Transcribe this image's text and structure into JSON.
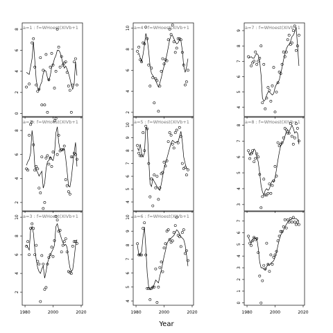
{
  "chart_data": {
    "type": "scatter",
    "layout": "3x3 small multiples",
    "overlay": "line",
    "xlabel": "Year",
    "ylabel": "",
    "x_ticks": [
      1980,
      2000,
      2020
    ],
    "x_tick_labels": [
      "1980",
      "2000",
      "2020"
    ],
    "xlim": [
      1978,
      2021
    ],
    "panels": [
      {
        "panel": 1,
        "title": "a=1 : f=WHoest(XIVb+1",
        "ylim": [
          -0.3,
          8.6
        ],
        "y_ticks": [
          0,
          2,
          4,
          6,
          8
        ],
        "x": [
          1981,
          1983,
          1985,
          1986,
          1987,
          1988,
          1989,
          1990,
          1991,
          1992,
          1993,
          1994,
          1995,
          1996,
          1997,
          1998,
          1999,
          2000,
          2001,
          2002,
          2003,
          2004,
          2005,
          2006,
          2007,
          2008,
          2009,
          2010,
          2011,
          2012,
          2013,
          2014,
          2015,
          2016,
          2017
        ],
        "y": [
          2.5,
          2.8,
          6.7,
          7.1,
          4.4,
          2.7,
          2.1,
          2.3,
          5.3,
          0.8,
          4.1,
          0.8,
          5.6,
          0.1,
          3.2,
          4.4,
          5.7,
          4.6,
          2.4,
          4.0,
          8.0,
          6.3,
          4.4,
          5.4,
          4.6,
          4.8,
          4.9,
          3.9,
          2.6,
          2.2,
          0.1,
          2.7,
          4.9,
          5.2,
          2.7
        ],
        "line": [
          3.9,
          3.7,
          5.2,
          6.8,
          5.0,
          3.2,
          2.4,
          2.2,
          2.7,
          3.0,
          3.8,
          4.1,
          4.0,
          3.4,
          3.1,
          3.6,
          4.4,
          4.7,
          5.2,
          5.5,
          6.0,
          6.0,
          5.8,
          5.3,
          4.7,
          4.3,
          4.5,
          4.2,
          3.8,
          3.3,
          2.7,
          2.3,
          2.8,
          4.9,
          3.6
        ]
      },
      {
        "panel": 2,
        "title": "a=4 : f=WHoest(XIVb+1",
        "ylim": [
          1.6,
          10.5
        ],
        "y_ticks": [
          2,
          4,
          6,
          8,
          10
        ],
        "x": [
          1981,
          1982,
          1983,
          1984,
          1985,
          1986,
          1987,
          1988,
          1989,
          1990,
          1991,
          1992,
          1993,
          1994,
          1995,
          1996,
          1997,
          1998,
          1999,
          2000,
          2001,
          2002,
          2003,
          2004,
          2005,
          2006,
          2007,
          2008,
          2009,
          2010,
          2011,
          2012,
          2013,
          2014,
          2015,
          2016,
          2017
        ],
        "y": [
          7.8,
          8.2,
          7.0,
          6.8,
          8.6,
          8.5,
          10.1,
          9.0,
          6.5,
          4.5,
          6.2,
          5.3,
          2.9,
          5.2,
          5.0,
          2.1,
          4.5,
          5.9,
          7.1,
          6.6,
          7.0,
          6.9,
          8.9,
          9.9,
          9.4,
          10.3,
          8.7,
          7.7,
          8.1,
          9.0,
          9.0,
          8.9,
          7.7,
          6.5,
          4.6,
          4.9,
          6.0
        ],
        "line": [
          7.5,
          7.6,
          7.2,
          6.8,
          7.5,
          8.4,
          9.5,
          9.0,
          7.8,
          6.4,
          5.7,
          5.5,
          5.3,
          5.0,
          4.7,
          4.4,
          4.8,
          5.3,
          5.9,
          6.4,
          6.9,
          7.5,
          8.2,
          8.9,
          9.3,
          9.3,
          9.0,
          8.7,
          8.5,
          8.6,
          8.9,
          8.8,
          7.9,
          6.4,
          5.8,
          6.3,
          7.1
        ]
      },
      {
        "panel": 3,
        "title": "a=7 : f=WHoest(XIVb+1",
        "ylim": [
          3.4,
          9.5
        ],
        "y_ticks": [
          4,
          5,
          6,
          7,
          8,
          9
        ],
        "x": [
          1981,
          1983,
          1984,
          1985,
          1986,
          1987,
          1988,
          1989,
          1990,
          1991,
          1992,
          1993,
          1994,
          1995,
          1996,
          1997,
          1998,
          1999,
          2000,
          2001,
          2002,
          2003,
          2004,
          2005,
          2006,
          2007,
          2008,
          2009,
          2010,
          2011,
          2012,
          2013,
          2014,
          2015,
          2016,
          2017
        ],
        "y": [
          7.3,
          6.7,
          6.9,
          7.0,
          7.6,
          6.8,
          7.0,
          7.2,
          8.0,
          4.3,
          6.8,
          3.9,
          4.6,
          5.3,
          5.1,
          4.4,
          5.4,
          6.6,
          3.7,
          5.0,
          5.6,
          6.3,
          6.2,
          6.8,
          7.6,
          7.3,
          7.6,
          8.4,
          8.7,
          8.1,
          8.2,
          9.0,
          9.3,
          7.7,
          8.0,
          8.7
        ],
        "line": [
          7.2,
          7.3,
          7.2,
          7.2,
          7.4,
          7.5,
          7.4,
          7.0,
          6.1,
          4.6,
          4.4,
          4.5,
          4.8,
          5.0,
          5.0,
          4.9,
          4.8,
          4.9,
          5.3,
          5.5,
          5.6,
          5.8,
          6.2,
          6.6,
          7.1,
          7.5,
          7.8,
          8.0,
          8.1,
          8.3,
          8.6,
          8.7,
          8.9,
          9.2,
          8.0,
          6.7
        ]
      },
      {
        "panel": 4,
        "title": "a=2 : f=WHoest(XIVb+1",
        "ylim": [
          1.3,
          9.1
        ],
        "y_ticks": [
          2,
          4,
          6,
          8
        ],
        "x": [
          1981,
          1982,
          1983,
          1984,
          1985,
          1986,
          1987,
          1988,
          1989,
          1990,
          1991,
          1992,
          1993,
          1994,
          1995,
          1996,
          1997,
          1998,
          1999,
          2000,
          2001,
          2002,
          2003,
          2004,
          2005,
          2006,
          2007,
          2008,
          2009,
          2010,
          2011,
          2012,
          2013,
          2014,
          2015,
          2016,
          2017
        ],
        "y": [
          4.8,
          4.7,
          7.6,
          8.5,
          8.7,
          6.8,
          4.7,
          5.0,
          4.8,
          3.2,
          2.8,
          5.8,
          1.5,
          2.0,
          5.7,
          5.9,
          5.2,
          5.7,
          5.0,
          6.2,
          8.8,
          9.0,
          6.0,
          7.6,
          6.3,
          6.4,
          6.4,
          6.7,
          3.9,
          3.4,
          2.9,
          2.7,
          5.8,
          5.8,
          6.1,
          6.0,
          5.6
        ],
        "line": [
          5.1,
          5.4,
          5.6,
          6.1,
          8.0,
          7.0,
          5.0,
          4.7,
          4.5,
          4.2,
          4.4,
          4.6,
          3.2,
          3.6,
          4.8,
          5.4,
          5.5,
          5.8,
          5.6,
          5.5,
          6.0,
          7.8,
          8.3,
          7.0,
          6.4,
          6.3,
          6.4,
          6.5,
          5.7,
          4.6,
          3.4,
          3.3,
          4.0,
          5.1,
          6.2,
          7.0,
          5.0
        ]
      },
      {
        "panel": 5,
        "title": "a=5 : f=WHoest(XIVb+1",
        "ylim": [
          3.3,
          10.6
        ],
        "y_ticks": [
          4,
          5,
          6,
          7,
          8,
          9,
          10
        ],
        "x": [
          1981,
          1982,
          1983,
          1984,
          1985,
          1986,
          1987,
          1988,
          1989,
          1990,
          1991,
          1992,
          1993,
          1994,
          1995,
          1996,
          1997,
          1998,
          1999,
          2000,
          2001,
          2002,
          2003,
          2004,
          2005,
          2006,
          2007,
          2008,
          2009,
          2010,
          2011,
          2012,
          2013,
          2014,
          2015,
          2016,
          2017
        ],
        "y": [
          8.4,
          7.8,
          7.6,
          7.6,
          9.4,
          8.0,
          9.9,
          9.7,
          7.0,
          4.4,
          5.8,
          3.7,
          6.1,
          5.1,
          6.0,
          4.2,
          5.1,
          6.2,
          6.3,
          7.1,
          6.8,
          7.2,
          8.7,
          9.4,
          9.2,
          8.5,
          8.2,
          9.4,
          9.6,
          8.6,
          9.8,
          9.1,
          7.0,
          6.6,
          6.7,
          6.1,
          6.5
        ],
        "line": [
          8.2,
          8.0,
          8.5,
          7.8,
          7.5,
          7.8,
          9.8,
          9.7,
          7.4,
          5.4,
          5.2,
          5.8,
          5.6,
          5.4,
          5.2,
          5.0,
          4.9,
          5.4,
          6.0,
          6.6,
          7.0,
          7.4,
          7.8,
          8.2,
          8.6,
          8.8,
          8.7,
          8.6,
          8.7,
          8.7,
          9.1,
          9.5,
          8.7,
          7.5,
          7.0,
          6.6,
          6.6
        ]
      },
      {
        "panel": 6,
        "title": "a=8 : f=WHoest(XIVb+1",
        "ylim": [
          2.6,
          8.5
        ],
        "y_ticks": [
          3,
          4,
          5,
          6,
          7,
          8
        ],
        "x": [
          1981,
          1982,
          1983,
          1984,
          1985,
          1986,
          1987,
          1988,
          1989,
          1990,
          1991,
          1992,
          1993,
          1994,
          1995,
          1996,
          1997,
          1998,
          1999,
          2000,
          2001,
          2002,
          2003,
          2004,
          2005,
          2006,
          2007,
          2008,
          2009,
          2010,
          2011,
          2012,
          2013,
          2014,
          2015,
          2016,
          2017
        ],
        "y": [
          6.4,
          5.9,
          6.2,
          6.4,
          5.7,
          5.9,
          6.2,
          6.0,
          4.9,
          2.8,
          3.5,
          4.6,
          3.6,
          3.6,
          3.7,
          4.3,
          3.7,
          4.2,
          4.5,
          5.4,
          4.8,
          6.9,
          6.7,
          6.8,
          6.9,
          7.2,
          7.8,
          7.7,
          7.5,
          7.5,
          8.1,
          7.3,
          6.8,
          7.2,
          8.1,
          7.8,
          7.0
        ],
        "line": [
          6.3,
          6.1,
          6.3,
          6.2,
          6.5,
          6.4,
          6.0,
          5.7,
          5.0,
          4.2,
          3.8,
          3.6,
          3.9,
          4.0,
          3.9,
          4.0,
          4.3,
          4.5,
          4.4,
          4.7,
          5.2,
          5.8,
          6.3,
          6.7,
          6.9,
          7.0,
          7.3,
          7.6,
          7.7,
          7.6,
          7.8,
          8.0,
          7.8,
          7.5,
          7.6,
          7.5,
          6.8
        ]
      },
      {
        "panel": 7,
        "title": "a=3 : f=WHoest(XIVb+1",
        "ylim": [
          0.6,
          10.6
        ],
        "y_ticks": [
          2,
          4,
          6,
          8,
          10
        ],
        "x": [
          1981,
          1982,
          1983,
          1984,
          1985,
          1986,
          1987,
          1988,
          1989,
          1990,
          1991,
          1992,
          1993,
          1994,
          1995,
          1996,
          1997,
          1998,
          1999,
          2000,
          2001,
          2002,
          2003,
          2004,
          2005,
          2006,
          2007,
          2008,
          2009,
          2010,
          2011,
          2012,
          2013,
          2014,
          2015,
          2016,
          2017
        ],
        "y": [
          6.9,
          7.4,
          6.0,
          8.8,
          9.3,
          8.8,
          6.0,
          7.0,
          5.3,
          5.0,
          1.0,
          5.9,
          5.0,
          2.3,
          2.5,
          5.0,
          5.7,
          6.0,
          6.8,
          5.8,
          7.5,
          10.1,
          9.7,
          8.5,
          8.6,
          6.3,
          7.0,
          7.4,
          7.7,
          6.3,
          4.2,
          4.1,
          4.0,
          6.9,
          7.4,
          7.4,
          7.2
        ],
        "line": [
          7.0,
          6.8,
          6.5,
          8.6,
          9.0,
          8.3,
          6.6,
          5.5,
          4.6,
          4.2,
          4.0,
          4.5,
          4.8,
          3.5,
          4.2,
          5.1,
          5.6,
          6.0,
          6.3,
          6.6,
          7.0,
          9.0,
          9.3,
          8.7,
          8.2,
          7.7,
          7.3,
          7.0,
          7.1,
          6.8,
          5.5,
          4.6,
          4.2,
          4.4,
          5.6,
          7.0,
          7.6
        ]
      },
      {
        "panel": 8,
        "title": "a=6 : f=WHoest(XIVb+1",
        "ylim": [
          3.7,
          10.4
        ],
        "y_ticks": [
          4,
          5,
          6,
          7,
          8,
          9,
          10
        ],
        "x": [
          1981,
          1982,
          1983,
          1984,
          1985,
          1986,
          1987,
          1988,
          1989,
          1990,
          1991,
          1992,
          1993,
          1994,
          1995,
          1996,
          1997,
          1998,
          1999,
          2000,
          2001,
          2002,
          2003,
          2004,
          2005,
          2006,
          2007,
          2008,
          2009,
          2010,
          2011,
          2012,
          2013,
          2014,
          2015,
          2016,
          2017
        ],
        "y": [
          8.1,
          7.3,
          7.3,
          7.3,
          9.2,
          9.6,
          7.3,
          4.9,
          4.9,
          4.1,
          4.9,
          5.0,
          5.0,
          6.3,
          3.9,
          5.0,
          6.4,
          6.8,
          6.1,
          7.8,
          8.1,
          9.0,
          9.1,
          8.4,
          8.2,
          8.3,
          8.9,
          9.4,
          10.0,
          8.7,
          8.6,
          7.9,
          8.9,
          9.1,
          7.4,
          7.6,
          6.9
        ],
        "line": [
          8.0,
          7.3,
          7.4,
          7.5,
          8.6,
          9.3,
          7.8,
          6.0,
          5.0,
          4.8,
          4.9,
          5.0,
          5.2,
          5.5,
          5.4,
          5.3,
          5.8,
          6.2,
          6.7,
          7.2,
          7.6,
          8.1,
          8.3,
          8.4,
          8.5,
          8.6,
          8.7,
          8.9,
          9.1,
          9.0,
          8.8,
          8.6,
          8.5,
          8.4,
          8.0,
          7.3,
          6.5
        ]
      },
      {
        "panel": 9,
        "title": "",
        "ylim": [
          -0.2,
          7.8
        ],
        "y_ticks": [
          0,
          1,
          2,
          3,
          4,
          5,
          6,
          7
        ],
        "x": [
          1981,
          1982,
          1983,
          1984,
          1985,
          1986,
          1987,
          1988,
          1989,
          1990,
          1991,
          1992,
          1993,
          1994,
          1995,
          1996,
          1997,
          1998,
          1999,
          2000,
          2001,
          2002,
          2003,
          2004,
          2005,
          2006,
          2007,
          2008,
          2009,
          2010,
          2011,
          2012,
          2013,
          2014,
          2015,
          2016,
          2017
        ],
        "y": [
          5.7,
          5.1,
          4.9,
          5.3,
          5.6,
          5.4,
          5.5,
          4.3,
          2.3,
          0.0,
          1.9,
          3.2,
          2.9,
          5.1,
          3.3,
          2.7,
          4.1,
          3.3,
          3.9,
          4.1,
          4.4,
          5.3,
          5.7,
          6.1,
          6.1,
          6.5,
          7.1,
          6.4,
          7.1,
          6.9,
          7.2,
          6.9,
          7.3,
          6.9,
          6.7,
          6.9,
          6.7
        ],
        "line": [
          5.6,
          5.3,
          5.1,
          5.4,
          5.6,
          5.5,
          5.5,
          4.7,
          3.5,
          3.0,
          3.0,
          2.9,
          2.8,
          3.1,
          3.3,
          3.2,
          3.4,
          3.5,
          3.6,
          3.9,
          4.3,
          4.9,
          5.4,
          5.8,
          6.0,
          6.2,
          6.5,
          6.7,
          6.9,
          7.0,
          7.1,
          7.2,
          7.2,
          7.2,
          7.2,
          7.1,
          7.0
        ]
      }
    ]
  }
}
